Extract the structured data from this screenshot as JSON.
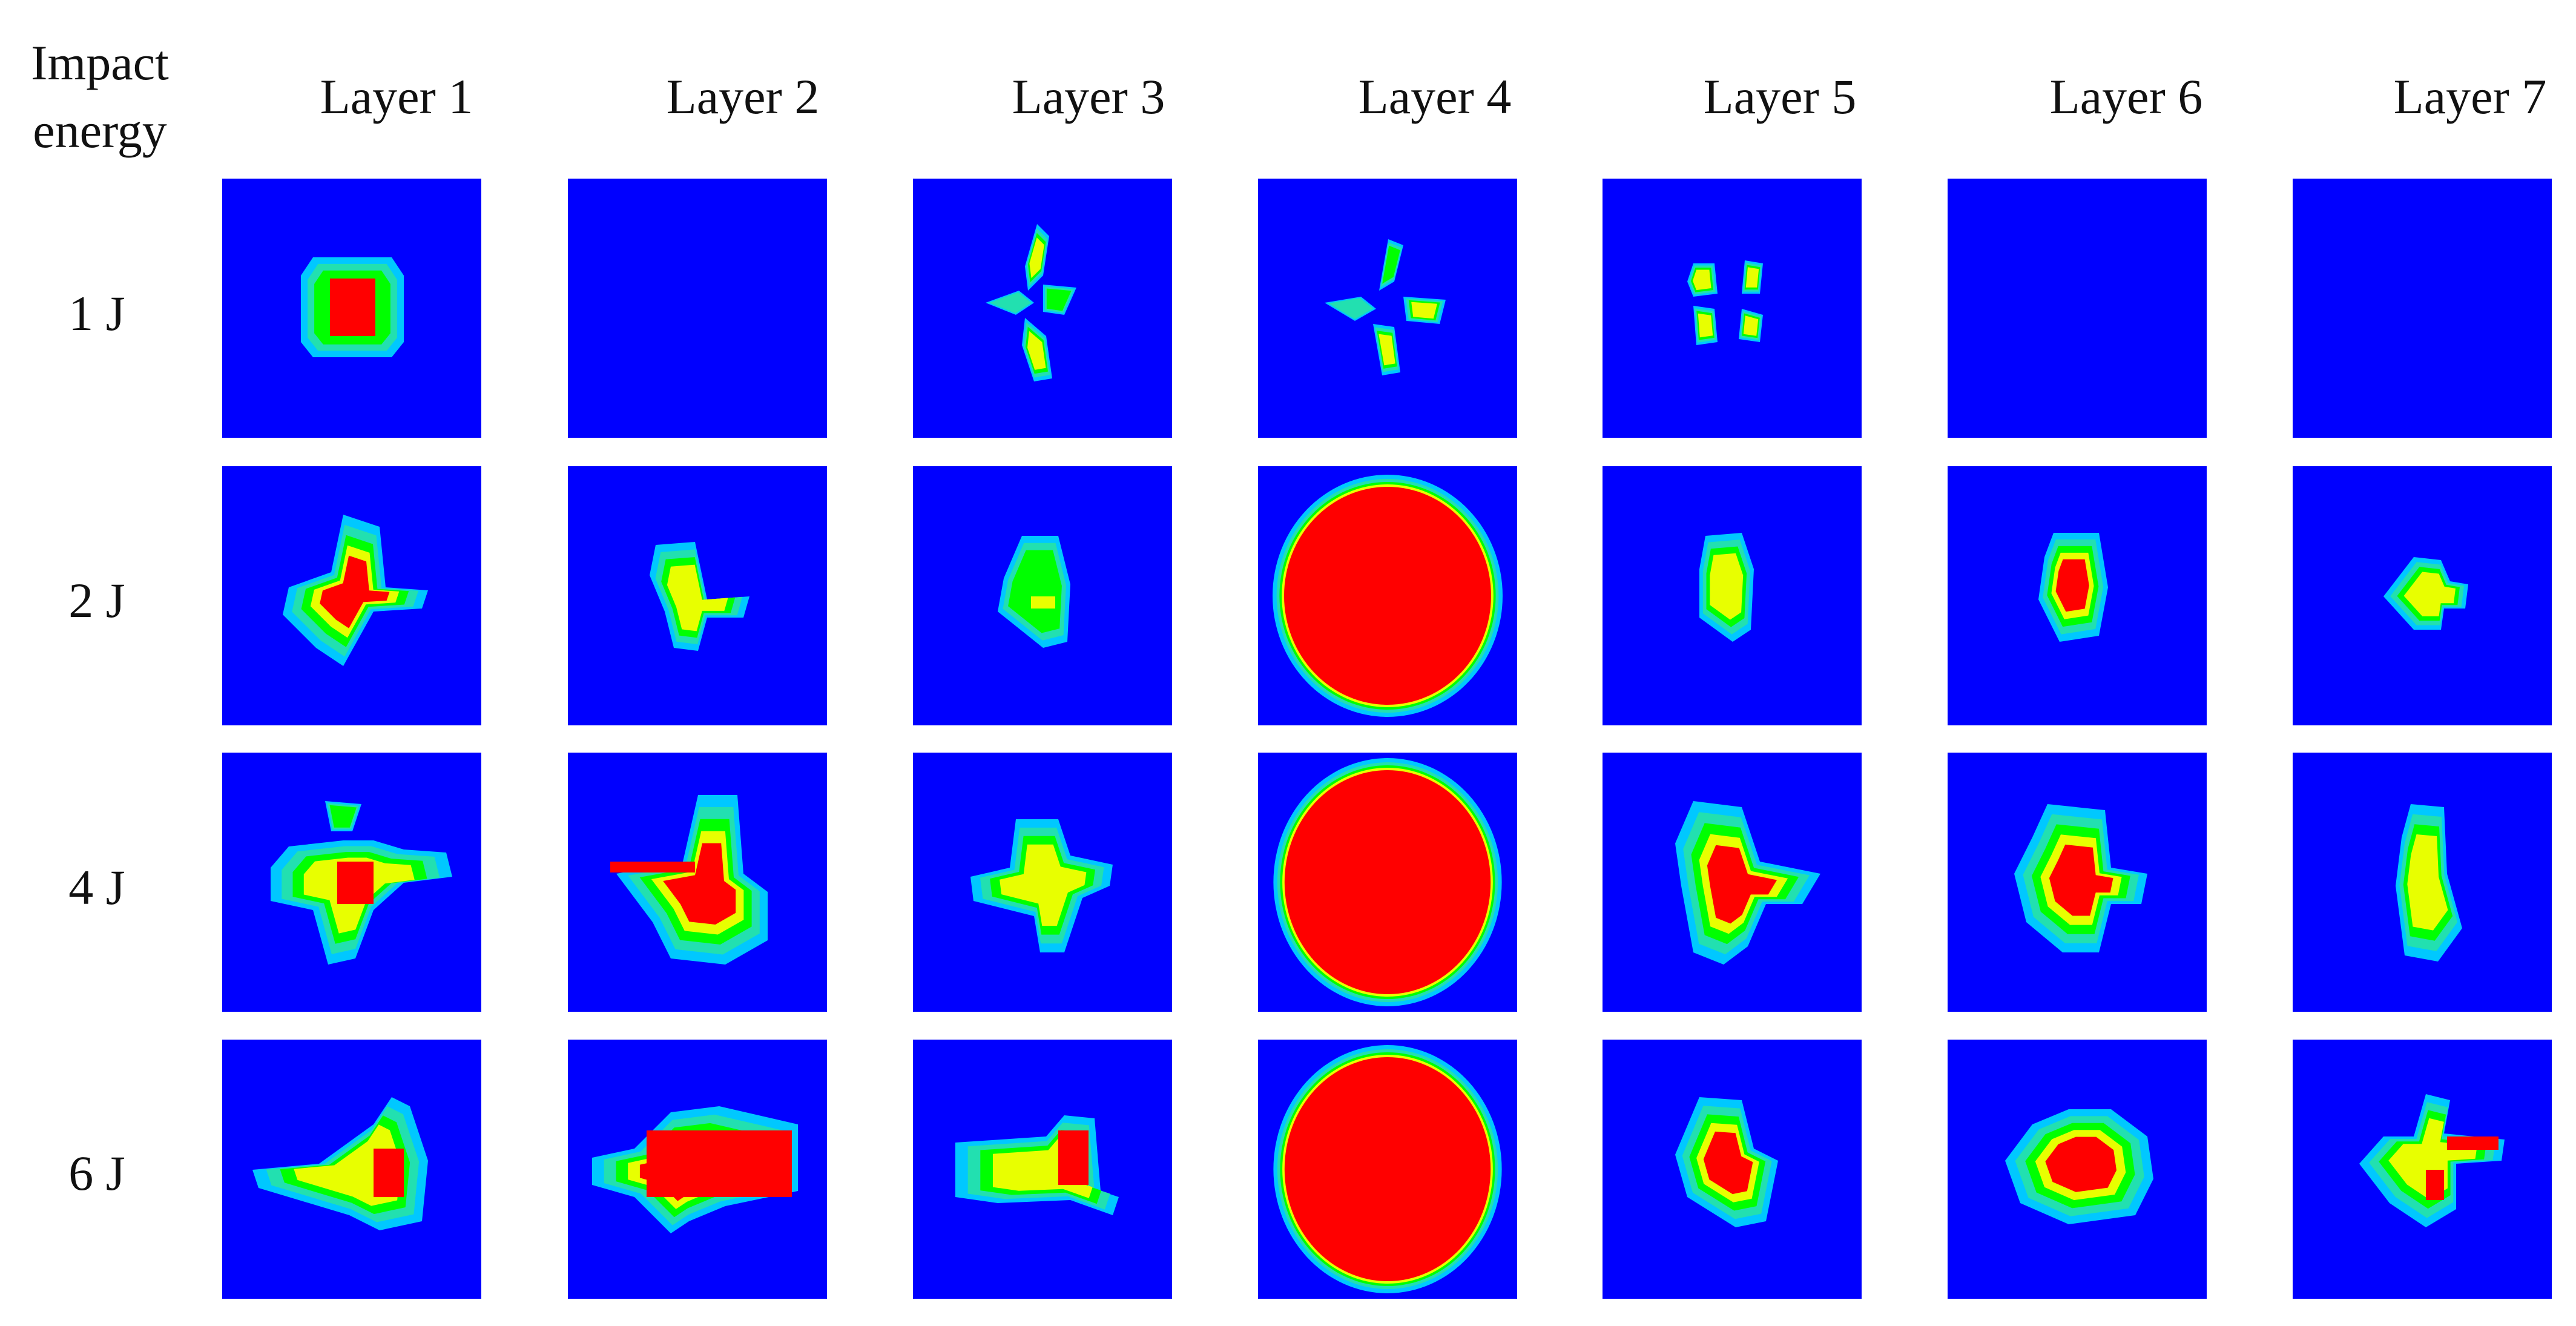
{
  "header": {
    "corner_label": "Impact energy",
    "layers": [
      "Layer 1",
      "Layer 2",
      "Layer 3",
      "Layer 4",
      "Layer 5",
      "Layer 6",
      "Layer 7"
    ]
  },
  "rows": [
    "1 J",
    "2 J",
    "4 J",
    "6 J"
  ],
  "colors": {
    "background": "#0000FF",
    "cyan": "#00C8FF",
    "teal": "#22E0B0",
    "green": "#00FF00",
    "yellow": "#E8FF00",
    "red": "#FF0000"
  },
  "panels": [
    [
      "square-damage",
      "empty",
      "three-arm-cracks",
      "cross-cracks",
      "four-spots",
      "empty",
      "empty"
    ],
    [
      "irregular-red-center",
      "small-irregular",
      "green-cluster",
      "large-red-ellipse",
      "small-lobed",
      "small-red-bar",
      "small-arrow"
    ],
    [
      "cross-with-red-core",
      "large-irregular-red",
      "scattered-cross",
      "large-red-circle",
      "lobed-red",
      "lobed-red-2",
      "narrow-vertical"
    ],
    [
      "elongated-left",
      "large-red-block",
      "horizontal-patch",
      "large-red-circle",
      "small-lobed-red",
      "red-octagon",
      "arrow-with-red"
    ]
  ]
}
